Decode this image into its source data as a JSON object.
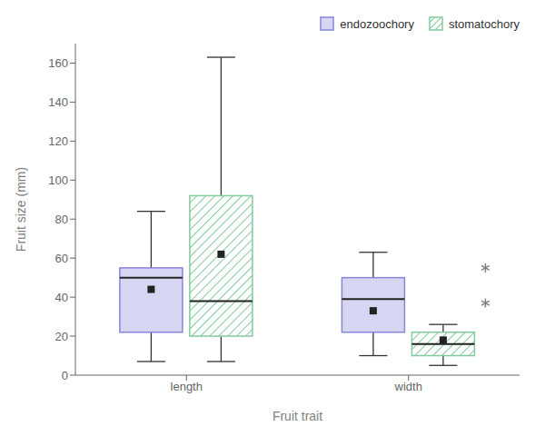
{
  "chart_data": {
    "type": "box",
    "xlabel": "Fruit trait",
    "ylabel": "Fruit size (mm)",
    "categories": [
      "length",
      "width"
    ],
    "series": [
      {
        "name": "endozoochory",
        "whisker_low": [
          7,
          10
        ],
        "q1": [
          22,
          22
        ],
        "median": [
          50,
          39
        ],
        "q3": [
          55,
          50
        ],
        "whisker_high": [
          84,
          63
        ],
        "mean": [
          44,
          33
        ],
        "outliers": [
          [],
          []
        ]
      },
      {
        "name": "stomatochory",
        "whisker_low": [
          7,
          5
        ],
        "q1": [
          20,
          10
        ],
        "median": [
          38,
          16
        ],
        "q3": [
          92,
          22
        ],
        "whisker_high": [
          163,
          26
        ],
        "mean": [
          62,
          18
        ],
        "outliers": [
          [],
          [
            37,
            55
          ]
        ]
      }
    ],
    "ylim": [
      0,
      170
    ],
    "yticks": [
      0,
      20,
      40,
      60,
      80,
      100,
      120,
      140,
      160
    ],
    "grid": false,
    "legend": "upper right"
  }
}
